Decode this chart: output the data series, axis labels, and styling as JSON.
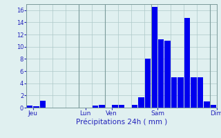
{
  "values": [
    0.3,
    0.2,
    1.1,
    0.0,
    0.0,
    0.0,
    0.0,
    0.0,
    0.0,
    0.0,
    0.3,
    0.4,
    0.0,
    0.5,
    0.4,
    0.0,
    0.5,
    1.7,
    8.0,
    16.5,
    11.2,
    11.0,
    5.0,
    5.0,
    14.7,
    5.0,
    5.0,
    1.0,
    0.5
  ],
  "day_labels": [
    "Jeu",
    "Lun",
    "Ven",
    "Sam",
    "Dim"
  ],
  "day_positions": [
    0.5,
    8.5,
    12.5,
    19.5,
    28.5
  ],
  "xlabel": "Précipitations 24h ( mm )",
  "ylim": [
    0,
    17
  ],
  "yticks": [
    0,
    2,
    4,
    6,
    8,
    10,
    12,
    14,
    16
  ],
  "bar_color": "#0000ee",
  "bg_color": "#e0f0f0",
  "grid_color": "#adc8c8",
  "text_color": "#2222bb",
  "fig_bg": "#e0f0f0",
  "vline_positions": [
    0,
    8,
    12,
    19,
    28
  ],
  "vline_color": "#7a9a9a"
}
